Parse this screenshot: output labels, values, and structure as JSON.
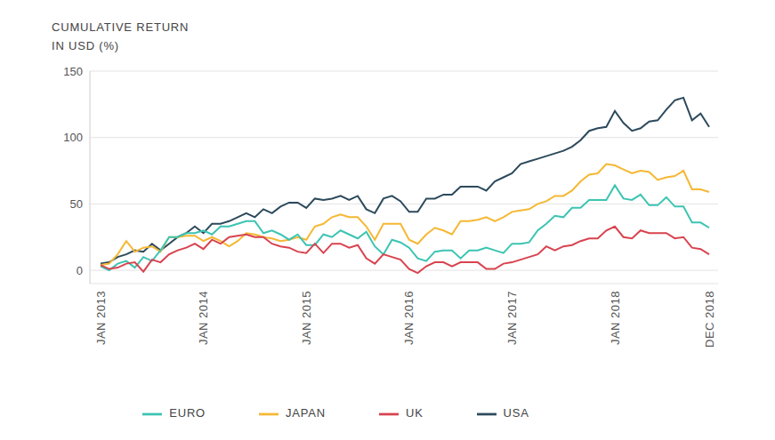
{
  "chart_data": {
    "type": "line",
    "y_label": "CUMULATIVE RETURN IN USD (%)",
    "categories": [
      "JAN 2013",
      null,
      null,
      null,
      null,
      null,
      null,
      null,
      null,
      null,
      null,
      null,
      "JAN 2014",
      null,
      null,
      null,
      null,
      null,
      null,
      null,
      null,
      null,
      null,
      null,
      "JAN 2015",
      null,
      null,
      null,
      null,
      null,
      null,
      null,
      null,
      null,
      null,
      null,
      "JAN 2016",
      null,
      null,
      null,
      null,
      null,
      null,
      null,
      null,
      null,
      null,
      null,
      "JAN 2017",
      null,
      null,
      null,
      null,
      null,
      null,
      null,
      null,
      null,
      null,
      null,
      "JAN 2018",
      null,
      null,
      null,
      null,
      null,
      null,
      null,
      null,
      null,
      null,
      "DEC 2018"
    ],
    "series": [
      {
        "name": "USA",
        "color": "#2c4a5c",
        "values": [
          5,
          6,
          10,
          12,
          15,
          14,
          20,
          15,
          20,
          25,
          28,
          33,
          28,
          35,
          35,
          37,
          40,
          43,
          40,
          46,
          43,
          48,
          51,
          51,
          47,
          54,
          53,
          54,
          56,
          53,
          56,
          46,
          43,
          54,
          56,
          52,
          44,
          44,
          54,
          54,
          57,
          57,
          63,
          63,
          63,
          60,
          67,
          70,
          73,
          80,
          82,
          84,
          86,
          88,
          90,
          93,
          98,
          105,
          107,
          108,
          120,
          111,
          105,
          107,
          112,
          113,
          121,
          128,
          130,
          113,
          118,
          108
        ]
      },
      {
        "name": "JAPAN",
        "color": "#f5b833",
        "values": [
          4,
          5,
          12,
          22,
          14,
          17,
          18,
          14,
          25,
          25,
          26,
          26,
          22,
          25,
          22,
          18,
          22,
          28,
          27,
          25,
          24,
          22,
          23,
          25,
          23,
          33,
          35,
          40,
          42,
          40,
          40,
          33,
          23,
          35,
          35,
          35,
          23,
          20,
          27,
          32,
          30,
          27,
          37,
          37,
          38,
          40,
          37,
          40,
          44,
          45,
          46,
          50,
          52,
          56,
          56,
          60,
          67,
          72,
          73,
          80,
          79,
          76,
          73,
          75,
          74,
          68,
          70,
          71,
          75,
          61,
          61,
          59
        ]
      },
      {
        "name": "EURO",
        "color": "#3cc4b2",
        "values": [
          3,
          0,
          5,
          7,
          2,
          10,
          7,
          15,
          25,
          25,
          28,
          28,
          30,
          27,
          33,
          33,
          35,
          37,
          37,
          28,
          30,
          27,
          23,
          27,
          19,
          19,
          27,
          25,
          30,
          27,
          24,
          29,
          18,
          12,
          23,
          21,
          17,
          9,
          7,
          14,
          15,
          15,
          9,
          15,
          15,
          17,
          15,
          13,
          20,
          20,
          21,
          30,
          35,
          41,
          40,
          47,
          47,
          53,
          53,
          53,
          64,
          54,
          53,
          57,
          49,
          49,
          55,
          48,
          48,
          36,
          36,
          32
        ]
      },
      {
        "name": "UK",
        "color": "#d8434f",
        "values": [
          4,
          1,
          2,
          5,
          6,
          -1,
          8,
          6,
          12,
          15,
          17,
          20,
          16,
          23,
          20,
          25,
          26,
          27,
          25,
          25,
          20,
          18,
          17,
          14,
          13,
          20,
          13,
          20,
          20,
          17,
          19,
          9,
          5,
          12,
          10,
          8,
          1,
          -2,
          3,
          6,
          6,
          3,
          6,
          6,
          6,
          1,
          1,
          5,
          6,
          8,
          10,
          12,
          18,
          15,
          18,
          19,
          22,
          24,
          24,
          30,
          33,
          25,
          24,
          30,
          28,
          28,
          28,
          24,
          25,
          17,
          16,
          12
        ]
      }
    ],
    "ylim": [
      -10,
      150
    ],
    "yticks": [
      0,
      50,
      100,
      150
    ],
    "grid": true,
    "legend": "bottom"
  }
}
